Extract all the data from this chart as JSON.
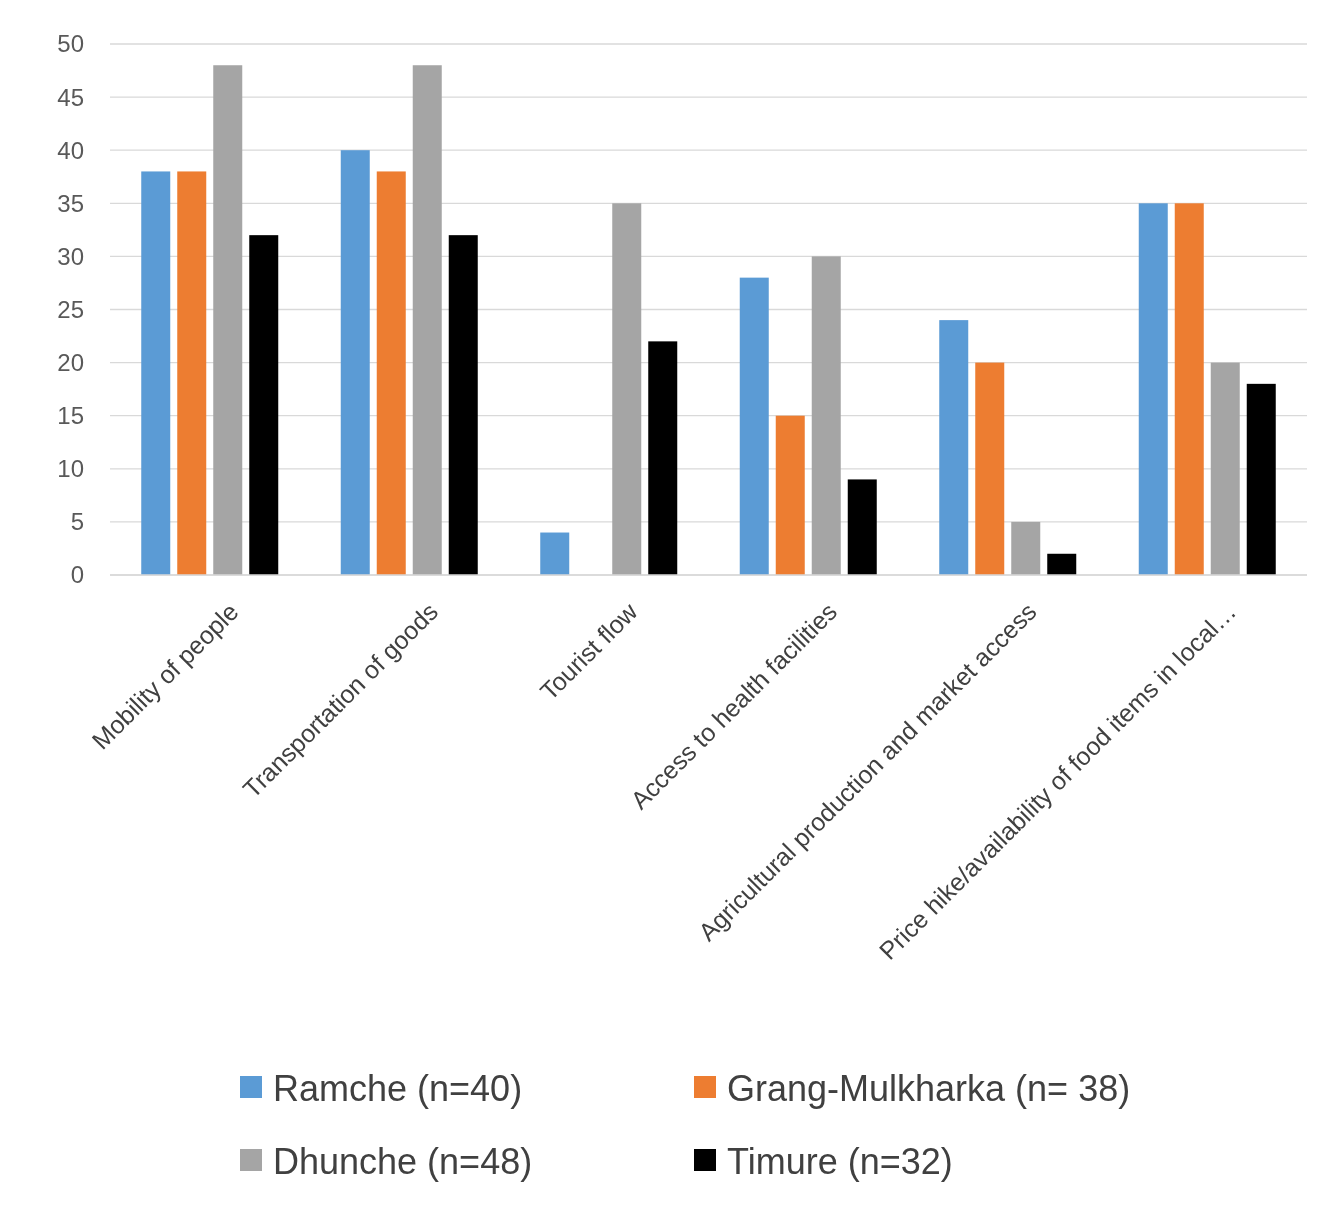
{
  "chart_data": {
    "type": "bar",
    "categories": [
      "Mobility of people",
      "Transportation of goods",
      "Tourist flow",
      "Access to health facilities",
      "Agricultural production and market access",
      "Price hike/availability of food items in local…"
    ],
    "series": [
      {
        "name": "Ramche (n=40)",
        "color": "#5b9bd5",
        "values": [
          38,
          40,
          4,
          28,
          24,
          35
        ]
      },
      {
        "name": "Grang-Mulkharka (n= 38)",
        "color": "#ed7d31",
        "values": [
          38,
          38,
          0,
          15,
          20,
          35
        ]
      },
      {
        "name": "Dhunche (n=48)",
        "color": "#a5a5a5",
        "values": [
          48,
          48,
          35,
          30,
          5,
          20
        ]
      },
      {
        "name": "Timure (n=32)",
        "color": "#000000",
        "values": [
          32,
          32,
          22,
          9,
          2,
          18
        ]
      }
    ],
    "ylim": [
      0,
      50
    ],
    "yticks": [
      0,
      5,
      10,
      15,
      20,
      25,
      30,
      35,
      40,
      45,
      50
    ],
    "grid": "y",
    "legend": "bottom"
  }
}
